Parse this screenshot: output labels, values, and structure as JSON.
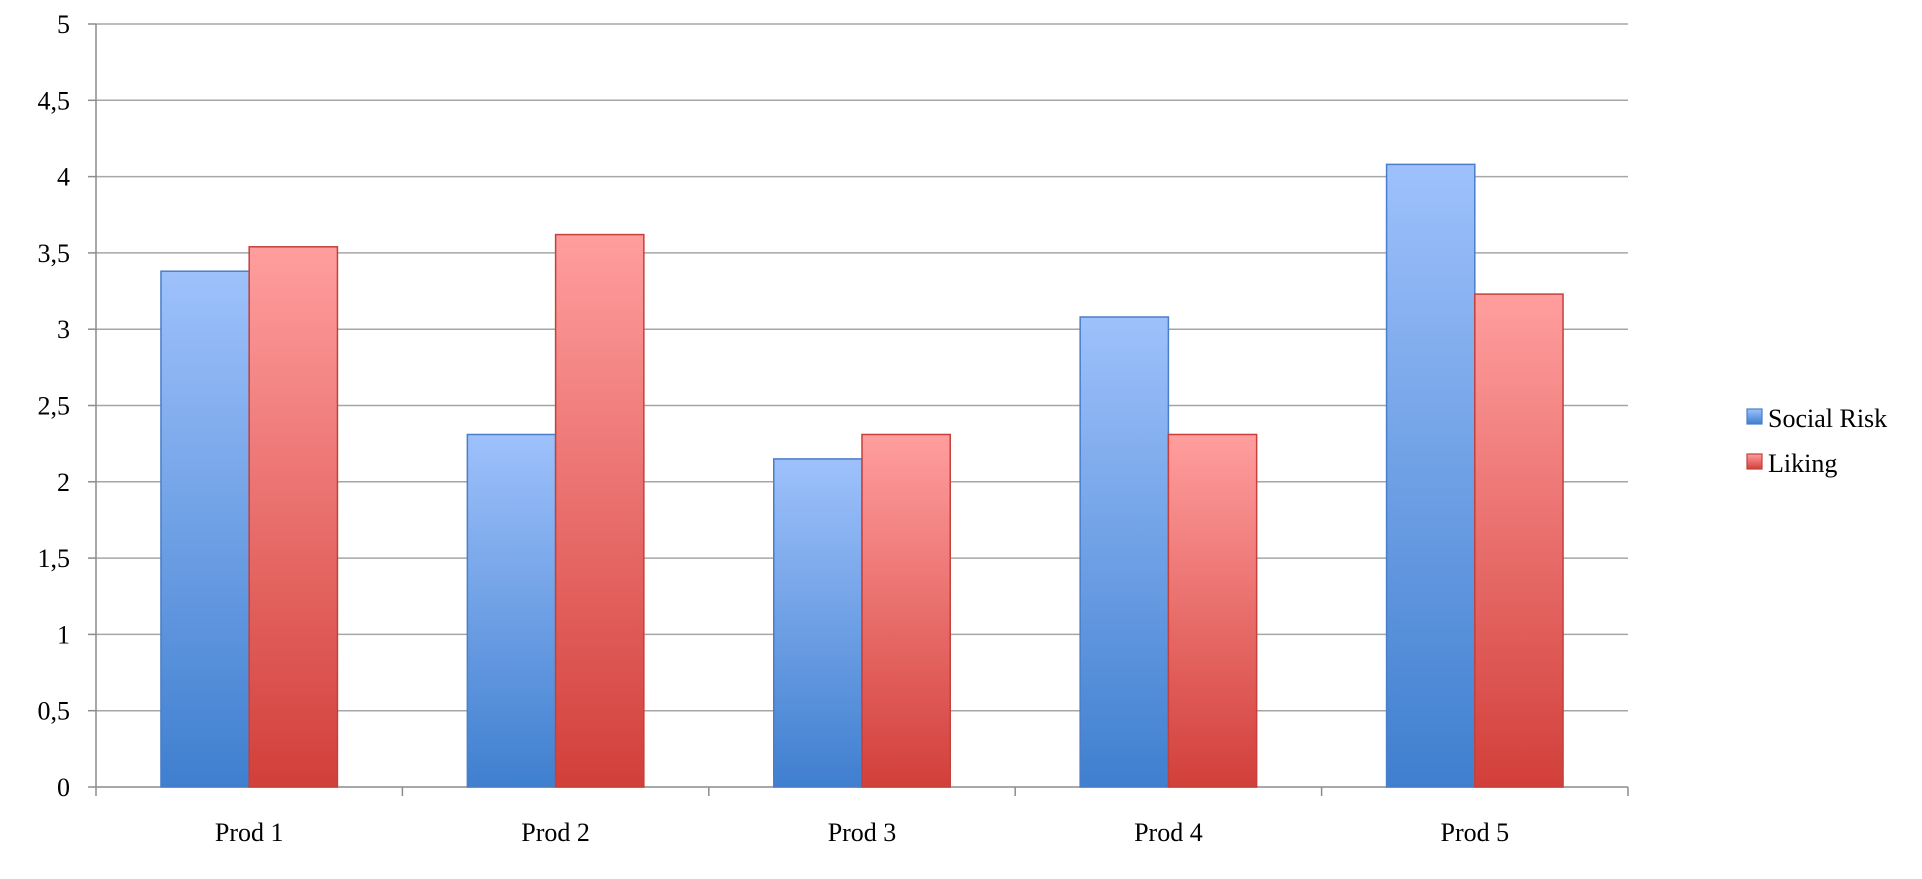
{
  "chart_data": {
    "type": "bar",
    "categories": [
      "Prod 1",
      "Prod 2",
      "Prod 3",
      "Prod 4",
      "Prod 5"
    ],
    "series": [
      {
        "name": "Social Risk",
        "values": [
          3.38,
          2.31,
          2.15,
          3.08,
          4.08
        ]
      },
      {
        "name": "Liking",
        "values": [
          3.54,
          3.62,
          2.31,
          2.31,
          3.23
        ]
      }
    ],
    "y_ticks": [
      "0",
      "0,5",
      "1",
      "1,5",
      "2",
      "2,5",
      "3",
      "3,5",
      "4",
      "4,5",
      "5"
    ],
    "ylim": [
      0,
      5
    ],
    "grid": true,
    "legend_position": "right",
    "colors": {
      "Social Risk": {
        "top": "#9ec1fb",
        "bottom": "#3f7fcf",
        "stroke": "#4a7ec9"
      },
      "Liking": {
        "top": "#ff9e9e",
        "bottom": "#d23f3a",
        "stroke": "#c5403b"
      },
      "grid": "#a6a6a6",
      "axis": "#8c8c8c"
    }
  }
}
